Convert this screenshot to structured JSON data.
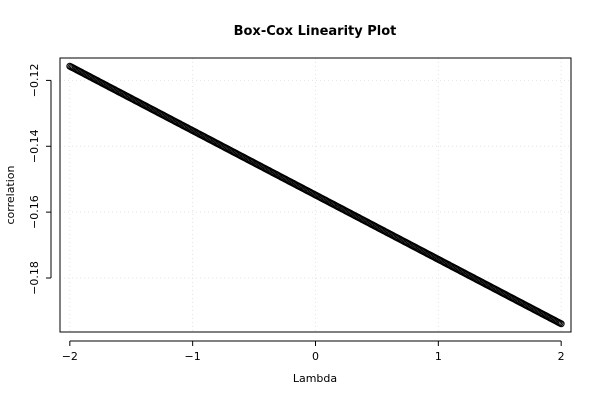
{
  "chart_data": {
    "type": "scatter",
    "title": "Box-Cox Linearity Plot",
    "xlabel": "Lambda",
    "ylabel": "correlation",
    "xlim": [
      -2.08,
      2.08
    ],
    "ylim": [
      -0.1964,
      -0.1132
    ],
    "x_ticks": [
      -2,
      -1,
      0,
      1,
      2
    ],
    "x_tick_labels": [
      "−2",
      "−1",
      "0",
      "1",
      "2"
    ],
    "y_ticks": [
      -0.18,
      -0.16,
      -0.14,
      -0.12
    ],
    "y_tick_labels": [
      "−0.18",
      "−0.16",
      "−0.14",
      "−0.12"
    ],
    "grid": true,
    "legend": "none",
    "marker_color": "#000000",
    "line": {
      "x_start": -2,
      "x_end": 2,
      "y_start": -0.1157,
      "y_end": -0.1939,
      "n_points": 401
    }
  }
}
